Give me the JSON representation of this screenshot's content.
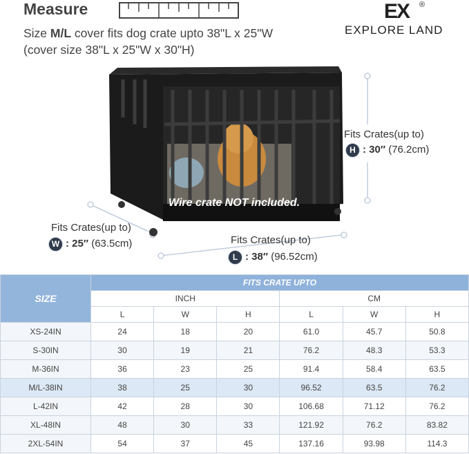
{
  "header": {
    "title": "Measure",
    "line1_prefix": "Size ",
    "line1_bold": "M/L",
    "line1_suffix": " cover fits dog crate upto 38\"L x 25\"W",
    "line2": "(cover size 38\"L x 25\"W x 30\"H)"
  },
  "logo": {
    "mark": "EX",
    "registered": "®",
    "name": "EXPLORE LAND"
  },
  "image": {
    "caption": "Wire crate NOT included."
  },
  "dimensions": {
    "height": {
      "label": "Fits Crates(up to)",
      "letter": "H",
      "value": ": 30″",
      "metric": " (76.2cm)"
    },
    "width": {
      "label": "Fits Crates(up to)",
      "letter": "W",
      "value": ": 25″",
      "metric": " (63.5cm)"
    },
    "length": {
      "label": "Fits Crates(up to)",
      "letter": "L",
      "value": ": 38″",
      "metric": " (96.52cm)"
    }
  },
  "table": {
    "size_header": "SIZE",
    "group_header": "FITS CRATE UPTO",
    "unit_headers": [
      "INCH",
      "CM"
    ],
    "column_headers": [
      "L",
      "W",
      "H",
      "L",
      "W",
      "H"
    ],
    "rows": [
      [
        "XS-24IN",
        "24",
        "18",
        "20",
        "61.0",
        "45.7",
        "50.8"
      ],
      [
        "S-30IN",
        "30",
        "19",
        "21",
        "76.2",
        "48.3",
        "53.3"
      ],
      [
        "M-36IN",
        "36",
        "23",
        "25",
        "91.4",
        "58.4",
        "63.5"
      ],
      [
        "M/L-38IN",
        "38",
        "25",
        "30",
        "96.52",
        "63.5",
        "76.2"
      ],
      [
        "L-42IN",
        "42",
        "28",
        "30",
        "106.68",
        "71.12",
        "76.2"
      ],
      [
        "XL-48IN",
        "48",
        "30",
        "33",
        "121.92",
        "76.2",
        "83.82"
      ],
      [
        "2XL-54IN",
        "54",
        "37",
        "45",
        "137.16",
        "93.98",
        "114.3"
      ]
    ]
  }
}
